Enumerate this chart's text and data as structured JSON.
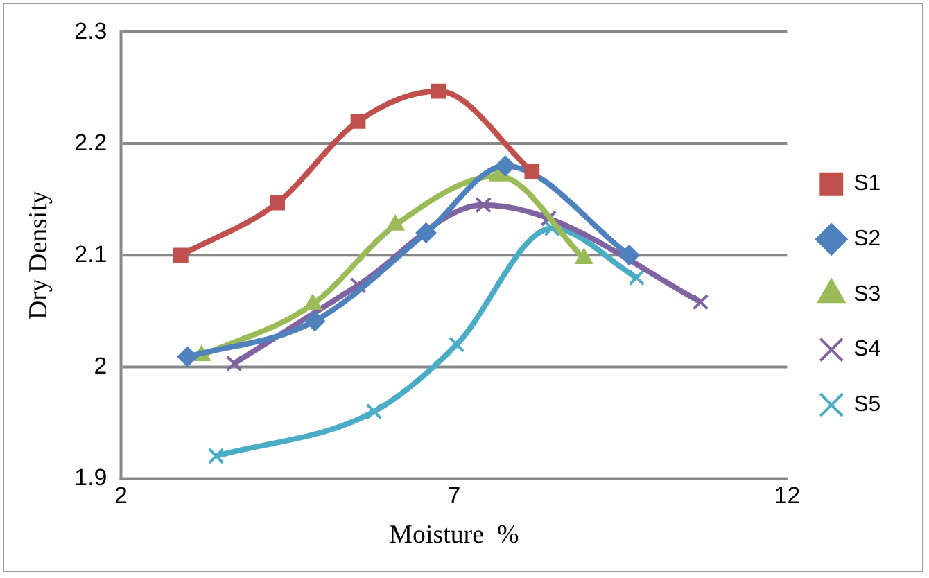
{
  "chart_data": {
    "type": "line",
    "xlabel": "Moisture  %",
    "ylabel": "Dry Density",
    "xlim": [
      2,
      12
    ],
    "xticks": [
      2,
      7,
      12
    ],
    "ylim": [
      1.9,
      2.3
    ],
    "yticks": [
      1.9,
      2,
      2.1,
      2.2,
      2.3
    ],
    "grid": "y",
    "legend": "right",
    "series": [
      {
        "name": "S1",
        "color": "#c0504d",
        "marker": "square",
        "x": [
          2.9,
          4.35,
          5.56,
          6.77,
          8.17
        ],
        "values": [
          2.1,
          2.147,
          2.22,
          2.247,
          2.175
        ]
      },
      {
        "name": "S2",
        "color": "#4f81bd",
        "marker": "diamond",
        "x": [
          3.0,
          4.91,
          6.58,
          7.77,
          9.63
        ],
        "values": [
          2.009,
          2.041,
          2.12,
          2.18,
          2.1
        ]
      },
      {
        "name": "S3",
        "color": "#9bbb59",
        "marker": "triangle",
        "x": [
          3.21,
          4.88,
          6.12,
          7.66,
          8.95
        ],
        "values": [
          2.01,
          2.056,
          2.127,
          2.171,
          2.097
        ]
      },
      {
        "name": "S4",
        "color": "#8064a2",
        "marker": "cross",
        "x": [
          3.7,
          5.56,
          7.44,
          8.42,
          10.7
        ],
        "values": [
          2.003,
          2.073,
          2.145,
          2.133,
          2.058
        ]
      },
      {
        "name": "S5",
        "color": "#4bacc6",
        "marker": "cross",
        "x": [
          3.43,
          5.8,
          7.04,
          8.47,
          9.74
        ],
        "values": [
          1.92,
          1.96,
          2.02,
          2.124,
          2.08
        ]
      }
    ]
  }
}
